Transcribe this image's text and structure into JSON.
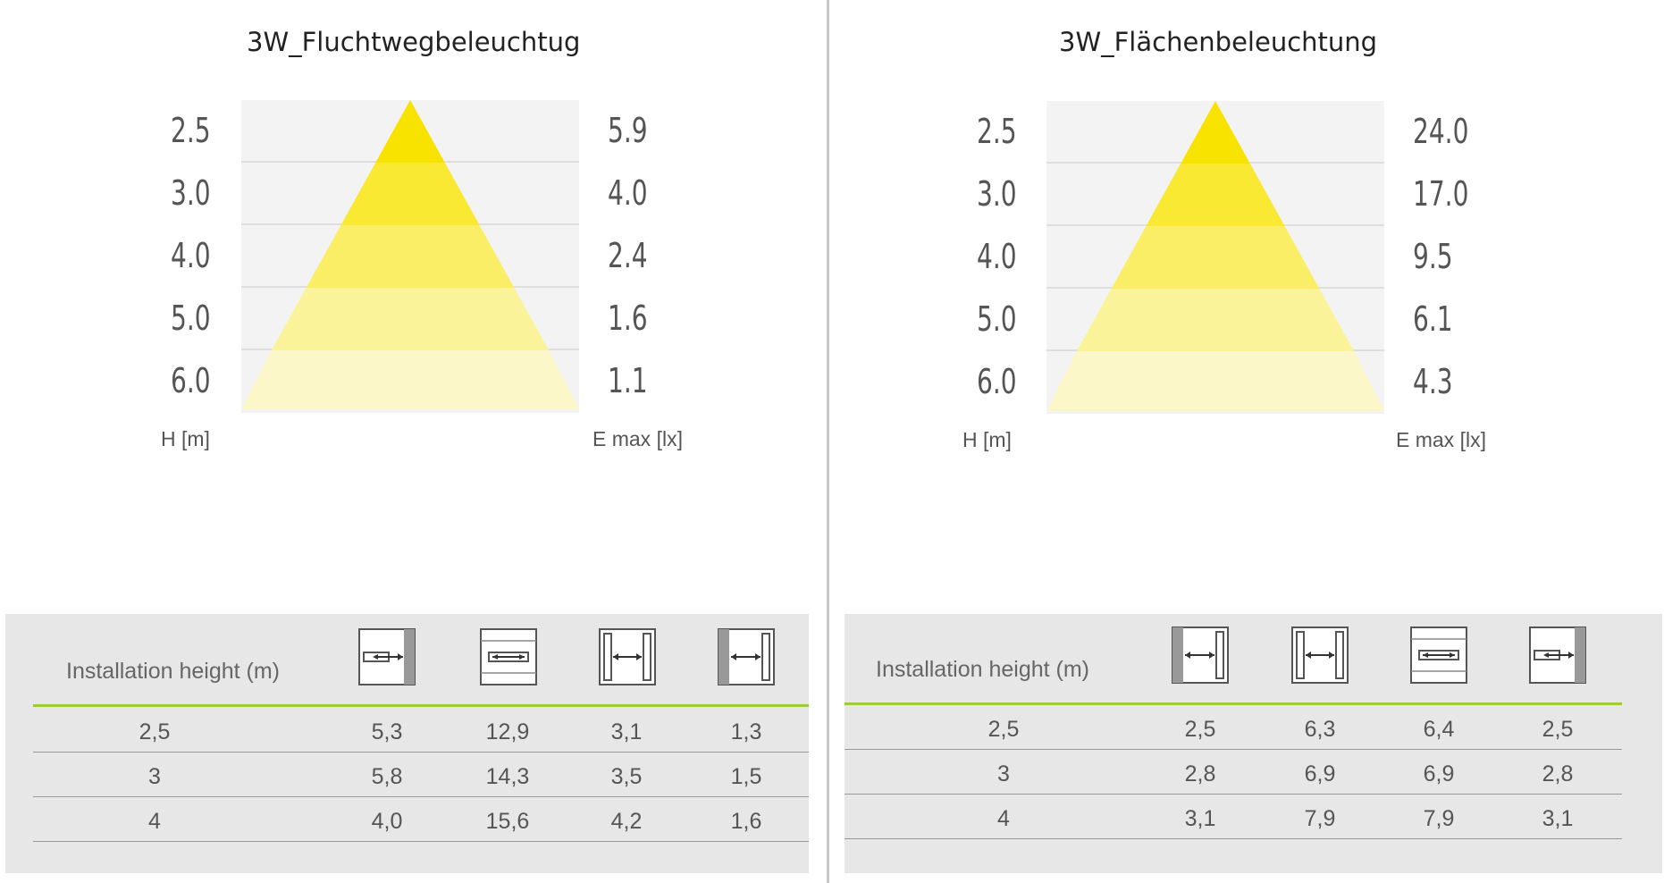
{
  "charts": [
    {
      "title": "3W_Fluchtwegbeleuchtug",
      "h_values": [
        "2.5",
        "3.0",
        "4.0",
        "5.0",
        "6.0"
      ],
      "e_values": [
        "5.9",
        "4.0",
        "2.4",
        "1.6",
        "1.1"
      ],
      "h_label": "H [m]",
      "e_label": "E max [lx]",
      "table": {
        "header": "Installation height (m)",
        "icons": [
          "wall-mount-corridor-icon",
          "ceiling-mount-corridor-icon",
          "ceiling-mount-area-icon",
          "wall-mount-area-icon"
        ],
        "rows": [
          [
            "2,5",
            "5,3",
            "12,9",
            "3,1",
            "1,3"
          ],
          [
            "3",
            "5,8",
            "14,3",
            "3,5",
            "1,5"
          ],
          [
            "4",
            "4,0",
            "15,6",
            "4,2",
            "1,6"
          ]
        ]
      }
    },
    {
      "title": "3W_Flächenbeleuchtung",
      "h_values": [
        "2.5",
        "3.0",
        "4.0",
        "5.0",
        "6.0"
      ],
      "e_values": [
        "24.0",
        "17.0",
        "9.5",
        "6.1",
        "4.3"
      ],
      "h_label": "H [m]",
      "e_label": "E max [lx]",
      "table": {
        "header": "Installation height (m)",
        "icons": [
          "wall-mount-area-icon",
          "ceiling-mount-area-icon",
          "ceiling-mount-corridor-icon",
          "wall-mount-corridor-icon"
        ],
        "rows": [
          [
            "2,5",
            "2,5",
            "6,3",
            "6,4",
            "2,5"
          ],
          [
            "3",
            "2,8",
            "6,9",
            "6,9",
            "2,8"
          ],
          [
            "4",
            "3,1",
            "7,9",
            "7,9",
            "3,1"
          ]
        ]
      }
    }
  ],
  "colors": {
    "band_1": "#f8e200",
    "band_2": "#f9e932",
    "band_3": "#faee66",
    "band_4": "#fbf39a",
    "band_5": "#fcf7c8",
    "accent_line": "#9ccc3c",
    "table_bg": "#e7e7e7"
  },
  "chart_data": [
    {
      "type": "table",
      "title": "3W_Fluchtwegbeleuchtug",
      "columns": [
        "H [m]",
        "E max [lx]"
      ],
      "rows": [
        [
          "2.5",
          "5.9"
        ],
        [
          "3.0",
          "4.0"
        ],
        [
          "4.0",
          "2.4"
        ],
        [
          "5.0",
          "1.6"
        ],
        [
          "6.0",
          "1.1"
        ]
      ]
    },
    {
      "type": "table",
      "title": "3W_Flächenbeleuchtung",
      "columns": [
        "H [m]",
        "E max [lx]"
      ],
      "rows": [
        [
          "2.5",
          "24.0"
        ],
        [
          "3.0",
          "17.0"
        ],
        [
          "4.0",
          "9.5"
        ],
        [
          "5.0",
          "6.1"
        ],
        [
          "6.0",
          "4.3"
        ]
      ]
    }
  ]
}
